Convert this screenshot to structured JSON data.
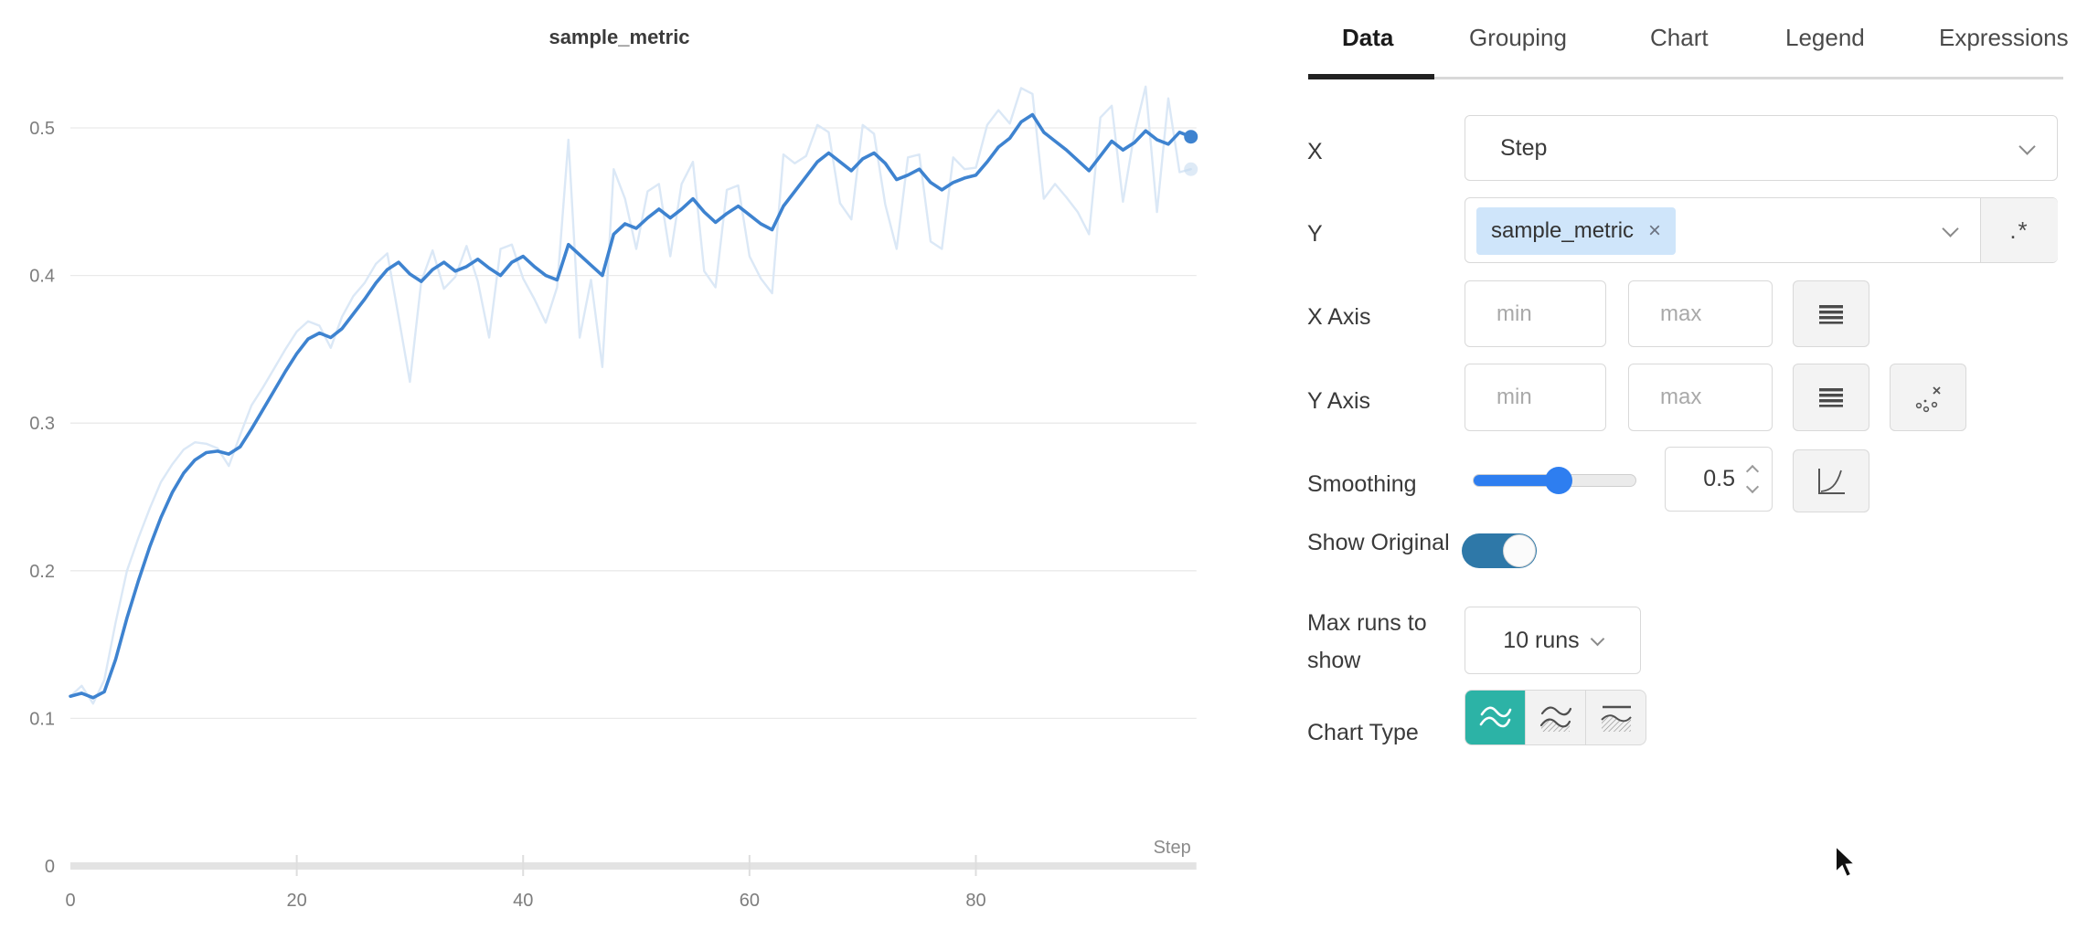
{
  "colors": {
    "teal": "#2cb3a6",
    "toggle_blue": "#2e78a8",
    "slider_blue": "#2e7ef0",
    "tag_bg": "#cfe5fa",
    "smoothed_line": "#3e83d0",
    "original_line": "#dbe8f6"
  },
  "panel": {
    "tabs": [
      {
        "label": "Data"
      },
      {
        "label": "Grouping"
      },
      {
        "label": "Chart"
      },
      {
        "label": "Legend"
      },
      {
        "label": "Expressions"
      }
    ],
    "x_row": {
      "label": "X",
      "value": "Step"
    },
    "y_row": {
      "label": "Y",
      "tag": "sample_metric",
      "tag_close": "×",
      "regex_button": ".*"
    },
    "x_axis_row": {
      "label": "X Axis",
      "min_placeholder": "min",
      "max_placeholder": "max"
    },
    "y_axis_row": {
      "label": "Y Axis",
      "min_placeholder": "min",
      "max_placeholder": "max"
    },
    "smoothing_row": {
      "label": "Smoothing",
      "value": "0.5"
    },
    "show_original_row": {
      "label": "Show Original",
      "enabled": true
    },
    "max_runs_row": {
      "label": "Max runs to show",
      "value": "10 runs"
    },
    "chart_type_row": {
      "label": "Chart Type",
      "selected": "line"
    }
  },
  "chart_data": {
    "type": "line",
    "title": "sample_metric",
    "xlabel": "Step",
    "x_ticks": [
      0,
      20,
      40,
      60,
      80
    ],
    "y_ticks": [
      "0",
      "0.1",
      "0.2",
      "0.3",
      "0.4",
      "0.5"
    ],
    "y_tick_values": [
      0,
      0.1,
      0.2,
      0.3,
      0.4,
      0.5
    ],
    "xlim": [
      0,
      99
    ],
    "ylim": [
      0,
      0.55
    ],
    "grid": "horizontal",
    "legend_position": "none",
    "series": [
      {
        "name": "sample_metric (original)",
        "color": "#dbe8f6",
        "end_dot_color": "#c3d8ee",
        "values": [
          0.115,
          0.122,
          0.11,
          0.126,
          0.165,
          0.2,
          0.222,
          0.242,
          0.26,
          0.272,
          0.282,
          0.287,
          0.286,
          0.283,
          0.271,
          0.292,
          0.312,
          0.324,
          0.337,
          0.35,
          0.362,
          0.369,
          0.366,
          0.351,
          0.372,
          0.386,
          0.395,
          0.408,
          0.415,
          0.372,
          0.328,
          0.396,
          0.417,
          0.391,
          0.399,
          0.42,
          0.396,
          0.358,
          0.418,
          0.421,
          0.398,
          0.384,
          0.368,
          0.392,
          0.492,
          0.358,
          0.397,
          0.338,
          0.472,
          0.452,
          0.418,
          0.457,
          0.462,
          0.413,
          0.462,
          0.477,
          0.403,
          0.392,
          0.458,
          0.461,
          0.413,
          0.398,
          0.388,
          0.482,
          0.476,
          0.481,
          0.502,
          0.497,
          0.449,
          0.438,
          0.502,
          0.496,
          0.448,
          0.418,
          0.48,
          0.482,
          0.423,
          0.418,
          0.48,
          0.472,
          0.473,
          0.502,
          0.512,
          0.503,
          0.527,
          0.523,
          0.452,
          0.462,
          0.453,
          0.443,
          0.428,
          0.507,
          0.515,
          0.45,
          0.496,
          0.528,
          0.443,
          0.52,
          0.47,
          0.472
        ]
      },
      {
        "name": "sample_metric",
        "color": "#3e83d0",
        "end_dot_color": "#3e83d0",
        "values": [
          0.115,
          0.117,
          0.114,
          0.118,
          0.14,
          0.168,
          0.193,
          0.216,
          0.236,
          0.253,
          0.266,
          0.275,
          0.28,
          0.281,
          0.279,
          0.284,
          0.296,
          0.309,
          0.322,
          0.335,
          0.347,
          0.357,
          0.361,
          0.358,
          0.364,
          0.374,
          0.384,
          0.395,
          0.404,
          0.409,
          0.401,
          0.396,
          0.404,
          0.409,
          0.403,
          0.406,
          0.411,
          0.405,
          0.4,
          0.409,
          0.413,
          0.406,
          0.4,
          0.397,
          0.421,
          0.414,
          0.407,
          0.4,
          0.428,
          0.435,
          0.432,
          0.439,
          0.445,
          0.439,
          0.445,
          0.452,
          0.443,
          0.436,
          0.442,
          0.447,
          0.441,
          0.435,
          0.431,
          0.447,
          0.457,
          0.467,
          0.477,
          0.483,
          0.477,
          0.471,
          0.479,
          0.483,
          0.476,
          0.465,
          0.468,
          0.472,
          0.463,
          0.458,
          0.463,
          0.466,
          0.468,
          0.477,
          0.487,
          0.493,
          0.504,
          0.509,
          0.497,
          0.491,
          0.485,
          0.478,
          0.471,
          0.481,
          0.491,
          0.485,
          0.49,
          0.498,
          0.492,
          0.489,
          0.497,
          0.494
        ]
      }
    ]
  }
}
